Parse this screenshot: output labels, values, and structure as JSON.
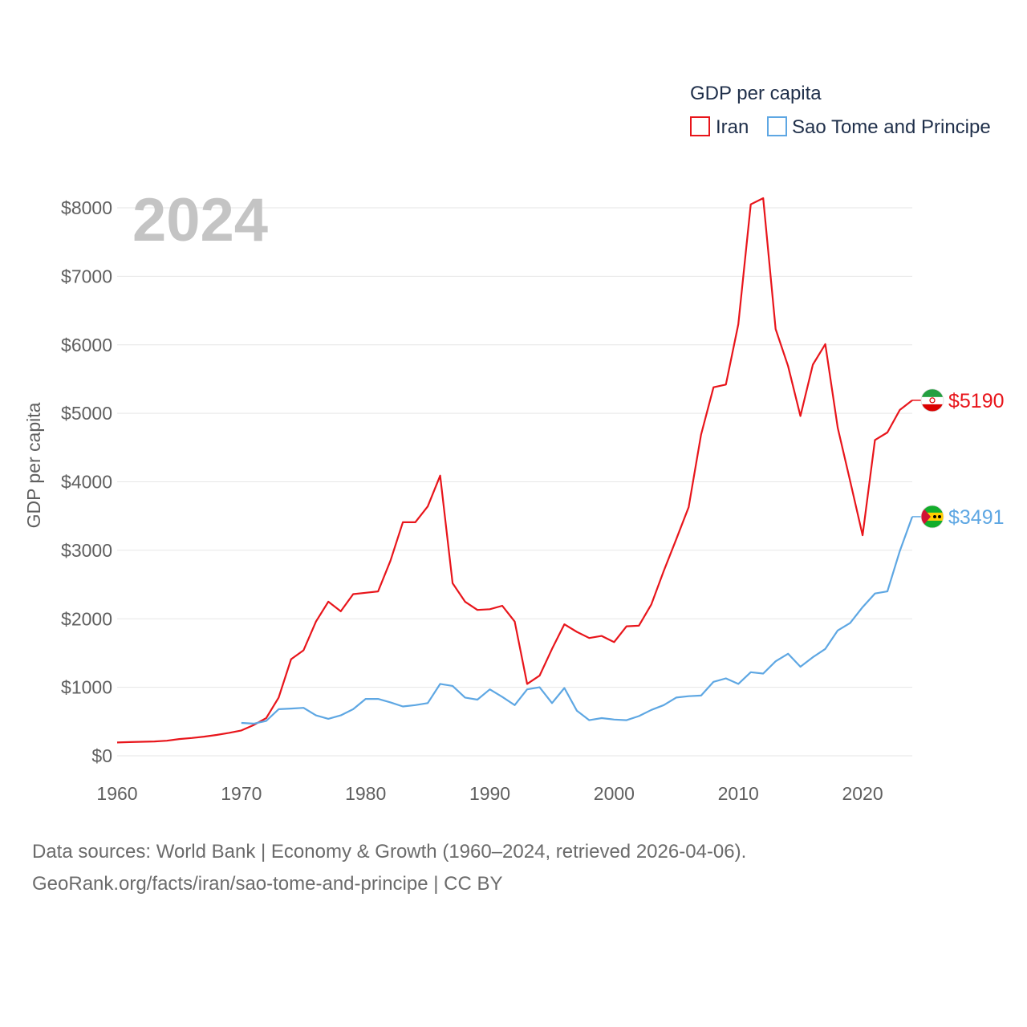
{
  "chart_data": {
    "type": "line",
    "title": "GDP per capita",
    "legend_title": "GDP per capita",
    "watermark_year": "2024",
    "ylabel": "GDP per capita",
    "xlabel": "",
    "xlim": [
      1960,
      2024
    ],
    "ylim": [
      0,
      8000
    ],
    "x_ticks": [
      "1960",
      "1970",
      "1980",
      "1990",
      "2000",
      "2010",
      "2020"
    ],
    "y_ticks": [
      "$0",
      "$1000",
      "$2000",
      "$3000",
      "$4000",
      "$5000",
      "$6000",
      "$7000",
      "$8000"
    ],
    "grid": true,
    "legend_position": "top-right",
    "series": [
      {
        "name": "Iran",
        "color": "#e8151b",
        "end_label": "$5190",
        "flag_icon": "iran-flag-icon",
        "x": [
          1960,
          1961,
          1962,
          1963,
          1964,
          1965,
          1966,
          1967,
          1968,
          1969,
          1970,
          1971,
          1972,
          1973,
          1974,
          1975,
          1976,
          1977,
          1978,
          1979,
          1980,
          1981,
          1982,
          1983,
          1984,
          1985,
          1986,
          1987,
          1988,
          1989,
          1990,
          1991,
          1992,
          1993,
          1994,
          1995,
          1996,
          1997,
          1998,
          1999,
          2000,
          2001,
          2002,
          2003,
          2004,
          2005,
          2006,
          2007,
          2008,
          2009,
          2010,
          2011,
          2012,
          2013,
          2014,
          2015,
          2016,
          2017,
          2018,
          2019,
          2020,
          2021,
          2022,
          2023,
          2024
        ],
        "values": [
          195,
          200,
          205,
          210,
          220,
          245,
          260,
          280,
          305,
          335,
          370,
          450,
          550,
          850,
          1410,
          1540,
          1960,
          2250,
          2110,
          2360,
          2380,
          2400,
          2850,
          3410,
          3410,
          3640,
          4090,
          2520,
          2250,
          2130,
          2140,
          2190,
          1960,
          1050,
          1170,
          1560,
          1920,
          1810,
          1720,
          1750,
          1660,
          1890,
          1900,
          2210,
          2700,
          3160,
          3630,
          4690,
          5380,
          5420,
          6300,
          8050,
          8140,
          6230,
          5690,
          4960,
          5710,
          6010,
          4790,
          4010,
          3220,
          4610,
          4720,
          5050,
          5190
        ]
      },
      {
        "name": "Sao Tome and Principe",
        "color": "#5ea7e3",
        "end_label": "$3491",
        "flag_icon": "sao-tome-flag-icon",
        "x": [
          1970,
          1971,
          1972,
          1973,
          1974,
          1975,
          1976,
          1977,
          1978,
          1979,
          1980,
          1981,
          1982,
          1983,
          1984,
          1985,
          1986,
          1987,
          1988,
          1989,
          1990,
          1991,
          1992,
          1993,
          1994,
          1995,
          1996,
          1997,
          1998,
          1999,
          2000,
          2001,
          2002,
          2003,
          2004,
          2005,
          2006,
          2007,
          2008,
          2009,
          2010,
          2011,
          2012,
          2013,
          2014,
          2015,
          2016,
          2017,
          2018,
          2019,
          2020,
          2021,
          2022,
          2023,
          2024
        ],
        "values": [
          480,
          470,
          510,
          680,
          690,
          700,
          590,
          540,
          590,
          680,
          830,
          830,
          780,
          720,
          740,
          770,
          1050,
          1020,
          850,
          820,
          970,
          860,
          740,
          970,
          1000,
          770,
          990,
          660,
          520,
          550,
          530,
          520,
          580,
          670,
          740,
          850,
          870,
          880,
          1080,
          1130,
          1050,
          1220,
          1200,
          1380,
          1490,
          1300,
          1440,
          1560,
          1830,
          1940,
          2170,
          2370,
          2400,
          2990,
          3491
        ]
      }
    ]
  },
  "footer": {
    "line1": "Data sources: World Bank | Economy & Growth (1960–2024, retrieved 2026-04-06).",
    "line2": "GeoRank.org/facts/iran/sao-tome-and-principe | CC BY"
  }
}
